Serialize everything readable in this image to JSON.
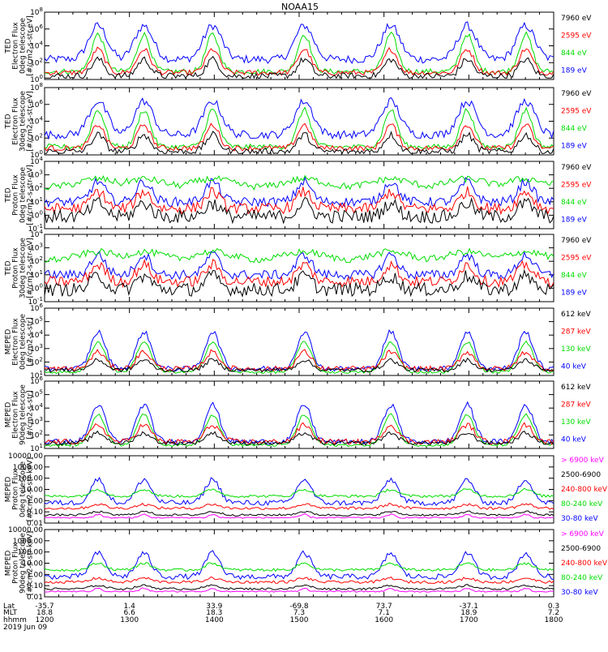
{
  "title": "NOAA15",
  "colors": {
    "black": "#000000",
    "blue": "#0000ff",
    "red": "#ff0000",
    "green": "#00dd00",
    "magenta": "#ff00ff",
    "white": "#ffffff"
  },
  "footer": {
    "row_labels": [
      "Lat",
      "MLT",
      "hhmm",
      "2019 Jun 09"
    ],
    "columns": [
      {
        "lat": "-35.7",
        "mlt": "18.8",
        "hhmm": "1200"
      },
      {
        "lat": "1.4",
        "mlt": "6.6",
        "hhmm": "1300"
      },
      {
        "lat": "33.9",
        "mlt": "18.3",
        "hhmm": "1400"
      },
      {
        "lat": "-69.8",
        "mlt": "7.3",
        "hhmm": "1500"
      },
      {
        "lat": "73.7",
        "mlt": "7.1",
        "hhmm": "1600"
      },
      {
        "lat": "-37.1",
        "mlt": "18.9",
        "hhmm": "1700"
      },
      {
        "lat": "0.3",
        "mlt": "7.2",
        "hhmm": "1800"
      }
    ]
  },
  "chart_data": [
    {
      "type": "line",
      "ylabel": [
        "TED",
        "Electron Flux",
        "0deg telescope",
        "[#/cm2-s-str-eV]"
      ],
      "yticks": [
        "10^0",
        "10^2",
        "10^4",
        "10^6",
        "10^8"
      ],
      "legend": [
        {
          "text": "7960 eV",
          "color": "black"
        },
        {
          "text": "2595 eV",
          "color": "red"
        },
        {
          "text": "844 eV",
          "color": "green"
        },
        {
          "text": "189 eV",
          "color": "blue"
        }
      ]
    },
    {
      "type": "line",
      "ylabel": [
        "TED",
        "Electron Flux",
        "30deg telescope",
        "[#/cm2-s-str-eV]"
      ],
      "yticks": [
        "10^0",
        "10^2",
        "10^4",
        "10^6",
        "10^8"
      ],
      "legend": [
        {
          "text": "7960 eV",
          "color": "black"
        },
        {
          "text": "2595 eV",
          "color": "red"
        },
        {
          "text": "844 eV",
          "color": "green"
        },
        {
          "text": "189 eV",
          "color": "blue"
        }
      ]
    },
    {
      "type": "line",
      "ylabel": [
        "TED",
        "Proton Flux",
        "0deg telescope",
        "[#/cm2-s-str-eV]"
      ],
      "yticks": [
        "10^-1",
        "10^0",
        "10^1",
        "10^2",
        "10^3",
        "10^4"
      ],
      "legend": [
        {
          "text": "7960 eV",
          "color": "black"
        },
        {
          "text": "2595 eV",
          "color": "red"
        },
        {
          "text": "844 eV",
          "color": "green"
        },
        {
          "text": "189 eV",
          "color": "blue"
        }
      ]
    },
    {
      "type": "line",
      "ylabel": [
        "TED",
        "Proton Flux",
        "30deg telescope",
        "[#/cm2-s-str-eV]"
      ],
      "yticks": [
        "10^-1",
        "10^0",
        "10^1",
        "10^2",
        "10^3",
        "10^4"
      ],
      "legend": [
        {
          "text": "7960 eV",
          "color": "black"
        },
        {
          "text": "2595 eV",
          "color": "red"
        },
        {
          "text": "844 eV",
          "color": "green"
        },
        {
          "text": "189 eV",
          "color": "blue"
        }
      ]
    },
    {
      "type": "line",
      "ylabel": [
        "MEPED",
        "Electron Flux",
        "0deg telescope",
        "[#/cm2-s-str]"
      ],
      "yticks": [
        "10^1",
        "10^2",
        "10^3",
        "10^4",
        "10^5",
        "10^6"
      ],
      "legend": [
        {
          "text": "612 keV",
          "color": "black"
        },
        {
          "text": "287 keV",
          "color": "red"
        },
        {
          "text": "130 keV",
          "color": "green"
        },
        {
          "text": "40 keV",
          "color": "blue"
        }
      ]
    },
    {
      "type": "line",
      "ylabel": [
        "MEPED",
        "Electron Flux",
        "90deg telescope",
        "[#/cm2-s-str]"
      ],
      "yticks": [
        "10^1",
        "10^2",
        "10^3",
        "10^4",
        "10^5",
        "10^6"
      ],
      "legend": [
        {
          "text": "612 keV",
          "color": "black"
        },
        {
          "text": "287 keV",
          "color": "red"
        },
        {
          "text": "130 keV",
          "color": "green"
        },
        {
          "text": "40 keV",
          "color": "blue"
        }
      ]
    },
    {
      "type": "line",
      "ylabel": [
        "MEPED",
        "Proton Flux",
        "0deg telescope",
        "[#/cm2-s-str-keV]"
      ],
      "yticks": [
        "0.01",
        "0.10",
        "1.00",
        "10.00",
        "100.00",
        "1000.00",
        "10000.00"
      ],
      "legend": [
        {
          "text": "> 6900 keV",
          "color": "magenta"
        },
        {
          "text": "2500-6900",
          "color": "black"
        },
        {
          "text": "240-800 keV",
          "color": "red"
        },
        {
          "text": "80-240 keV",
          "color": "green"
        },
        {
          "text": "30-80 keV",
          "color": "blue"
        }
      ]
    },
    {
      "type": "line",
      "ylabel": [
        "MEPED",
        "Proton Flux",
        "90deg telescope",
        "[#/cm2-s-str-keV]"
      ],
      "yticks": [
        "0.01",
        "0.10",
        "1.00",
        "10.00",
        "100.00",
        "1000.00",
        "10000.00"
      ],
      "legend": [
        {
          "text": "> 6900 keV",
          "color": "magenta"
        },
        {
          "text": "2500-6900",
          "color": "black"
        },
        {
          "text": "240-800 keV",
          "color": "red"
        },
        {
          "text": "80-240 keV",
          "color": "green"
        },
        {
          "text": "30-80 keV",
          "color": "blue"
        }
      ]
    }
  ]
}
